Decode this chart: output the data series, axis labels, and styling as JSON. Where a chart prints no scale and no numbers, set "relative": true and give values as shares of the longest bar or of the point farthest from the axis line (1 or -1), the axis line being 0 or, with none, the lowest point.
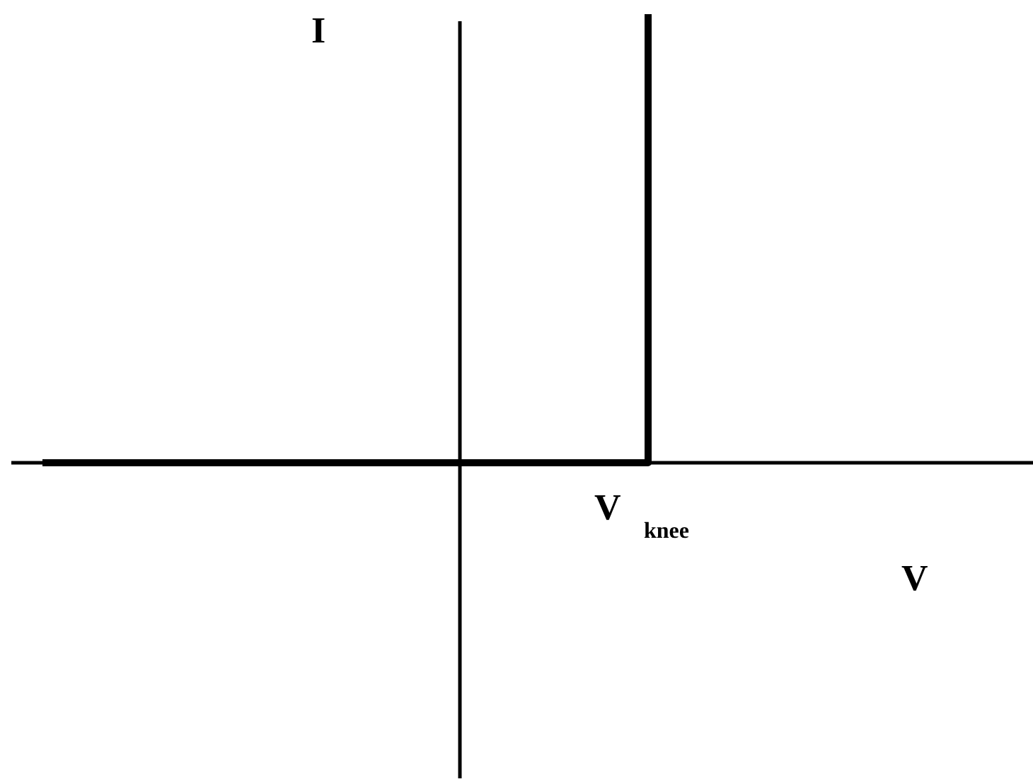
{
  "chart_data": {
    "type": "step",
    "relative": true,
    "xlabel": "V",
    "ylabel": "I",
    "categories": [
      null,
      null
    ],
    "annotations": [
      "V$_{knee}$"
    ],
    "series": [
      {
        "color": "#000000",
        "values": [
          0,
          1
        ]
      }
    ]
  }
}
